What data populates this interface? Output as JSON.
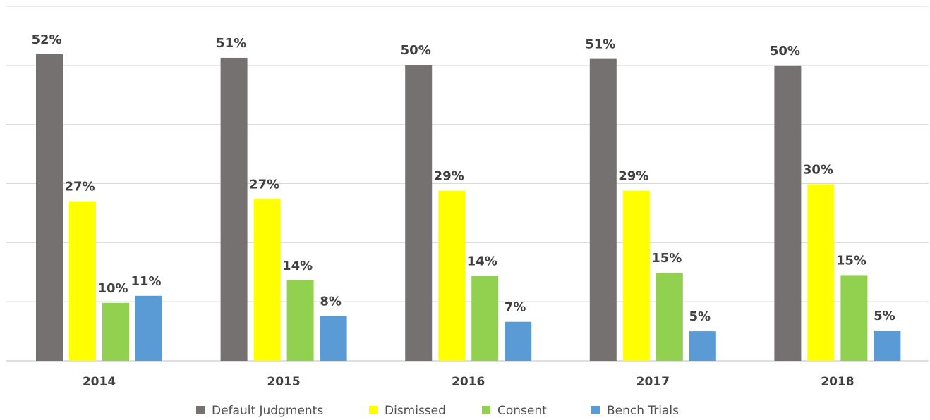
{
  "chart_data": {
    "type": "bar",
    "categories": [
      "2014",
      "2015",
      "2016",
      "2017",
      "2018"
    ],
    "series": [
      {
        "name": "Default Judgments",
        "color": "#767171",
        "values": [
          51.9,
          51.3,
          50.1,
          51.1,
          50.0
        ],
        "value_labels": [
          "52%",
          "51%",
          "50%",
          "51%",
          "50%"
        ]
      },
      {
        "name": "Dismissed",
        "color": "#ffff00",
        "values": [
          27,
          27.4,
          28.8,
          28.8,
          29.9
        ],
        "value_labels": [
          "27%",
          "27%",
          "29%",
          "29%",
          "30%"
        ]
      },
      {
        "name": "Consent",
        "color": "#92d050",
        "values": [
          9.8,
          13.6,
          14.4,
          14.9,
          14.5
        ],
        "value_labels": [
          "10%",
          "14%",
          "14%",
          "15%",
          "15%"
        ]
      },
      {
        "name": "Bench Trials",
        "color": "#5b9bd5",
        "values": [
          11,
          7.6,
          6.6,
          5,
          5.1
        ],
        "value_labels": [
          "11%",
          "8%",
          "7%",
          "5%",
          "5%"
        ]
      }
    ],
    "ylim": [
      0,
      60
    ],
    "yticks": [
      0,
      10,
      20,
      30,
      40,
      50,
      60
    ],
    "grid": true,
    "legend": "bottom"
  }
}
